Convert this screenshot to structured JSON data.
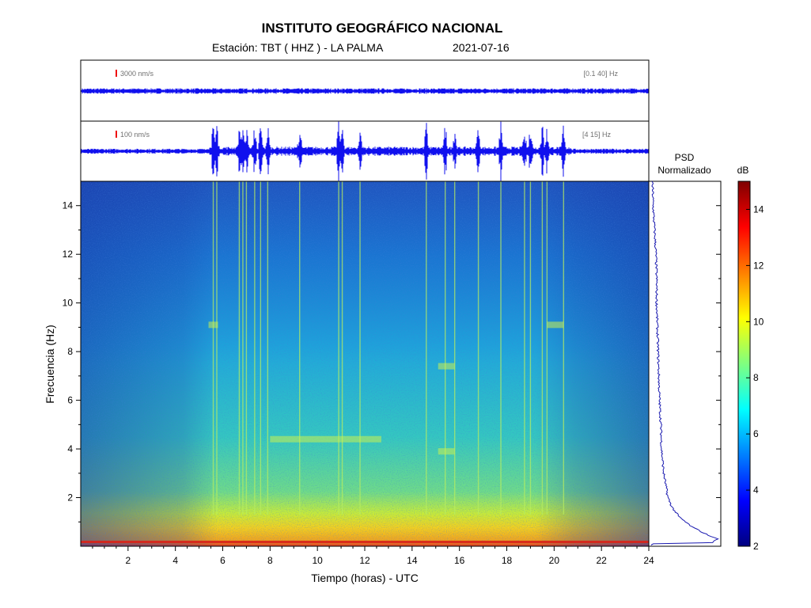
{
  "header": {
    "title": "INSTITUTO GEOGRÁFICO NACIONAL",
    "station": "Estación:  TBT ( HHZ ) - LA PALMA",
    "date": "2021-07-16"
  },
  "traces": [
    {
      "scale_label": "3000 nm/s",
      "band_label": "[0.1 40] Hz"
    },
    {
      "scale_label": "100 nm/s",
      "band_label": "[4 15] Hz"
    }
  ],
  "psd": {
    "label_line1": "PSD",
    "label_line2": "Normalizado"
  },
  "colors": {
    "trace": "#1010ee",
    "scale_bar": "#ee1111",
    "band_text": "#707070"
  },
  "chart_data": {
    "type": "heatmap",
    "xlabel": "Tiempo (horas) - UTC",
    "ylabel": "Frecuencia  (Hz)",
    "xlim": [
      0,
      24
    ],
    "ylim": [
      0,
      15
    ],
    "xticks": [
      2,
      4,
      6,
      8,
      10,
      12,
      14,
      16,
      18,
      20,
      22,
      24
    ],
    "yticks": [
      2,
      4,
      6,
      8,
      10,
      12,
      14
    ],
    "colorbar": {
      "label": "dB",
      "range": [
        2,
        15
      ],
      "ticks": [
        2,
        4,
        6,
        8,
        10,
        12,
        14
      ]
    },
    "event_hours": [
      5.6,
      5.75,
      6.7,
      6.85,
      7.0,
      7.35,
      7.6,
      7.9,
      9.25,
      10.9,
      11.05,
      11.8,
      14.6,
      15.4,
      15.8,
      16.8,
      17.75,
      18.75,
      19.0,
      19.5,
      19.7,
      20.4
    ],
    "psd_profile": [
      [
        0.1,
        0.88
      ],
      [
        0.3,
        0.96
      ],
      [
        0.5,
        0.8
      ],
      [
        0.8,
        0.6
      ],
      [
        1.2,
        0.42
      ],
      [
        1.6,
        0.32
      ],
      [
        2,
        0.26
      ],
      [
        3,
        0.2
      ],
      [
        4,
        0.17
      ],
      [
        5,
        0.16
      ],
      [
        6,
        0.14
      ],
      [
        7,
        0.13
      ],
      [
        8,
        0.12
      ],
      [
        9,
        0.11
      ],
      [
        10,
        0.1
      ],
      [
        11,
        0.1
      ],
      [
        12,
        0.09
      ],
      [
        13,
        0.07
      ],
      [
        14,
        0.05
      ],
      [
        15,
        0.04
      ]
    ]
  }
}
